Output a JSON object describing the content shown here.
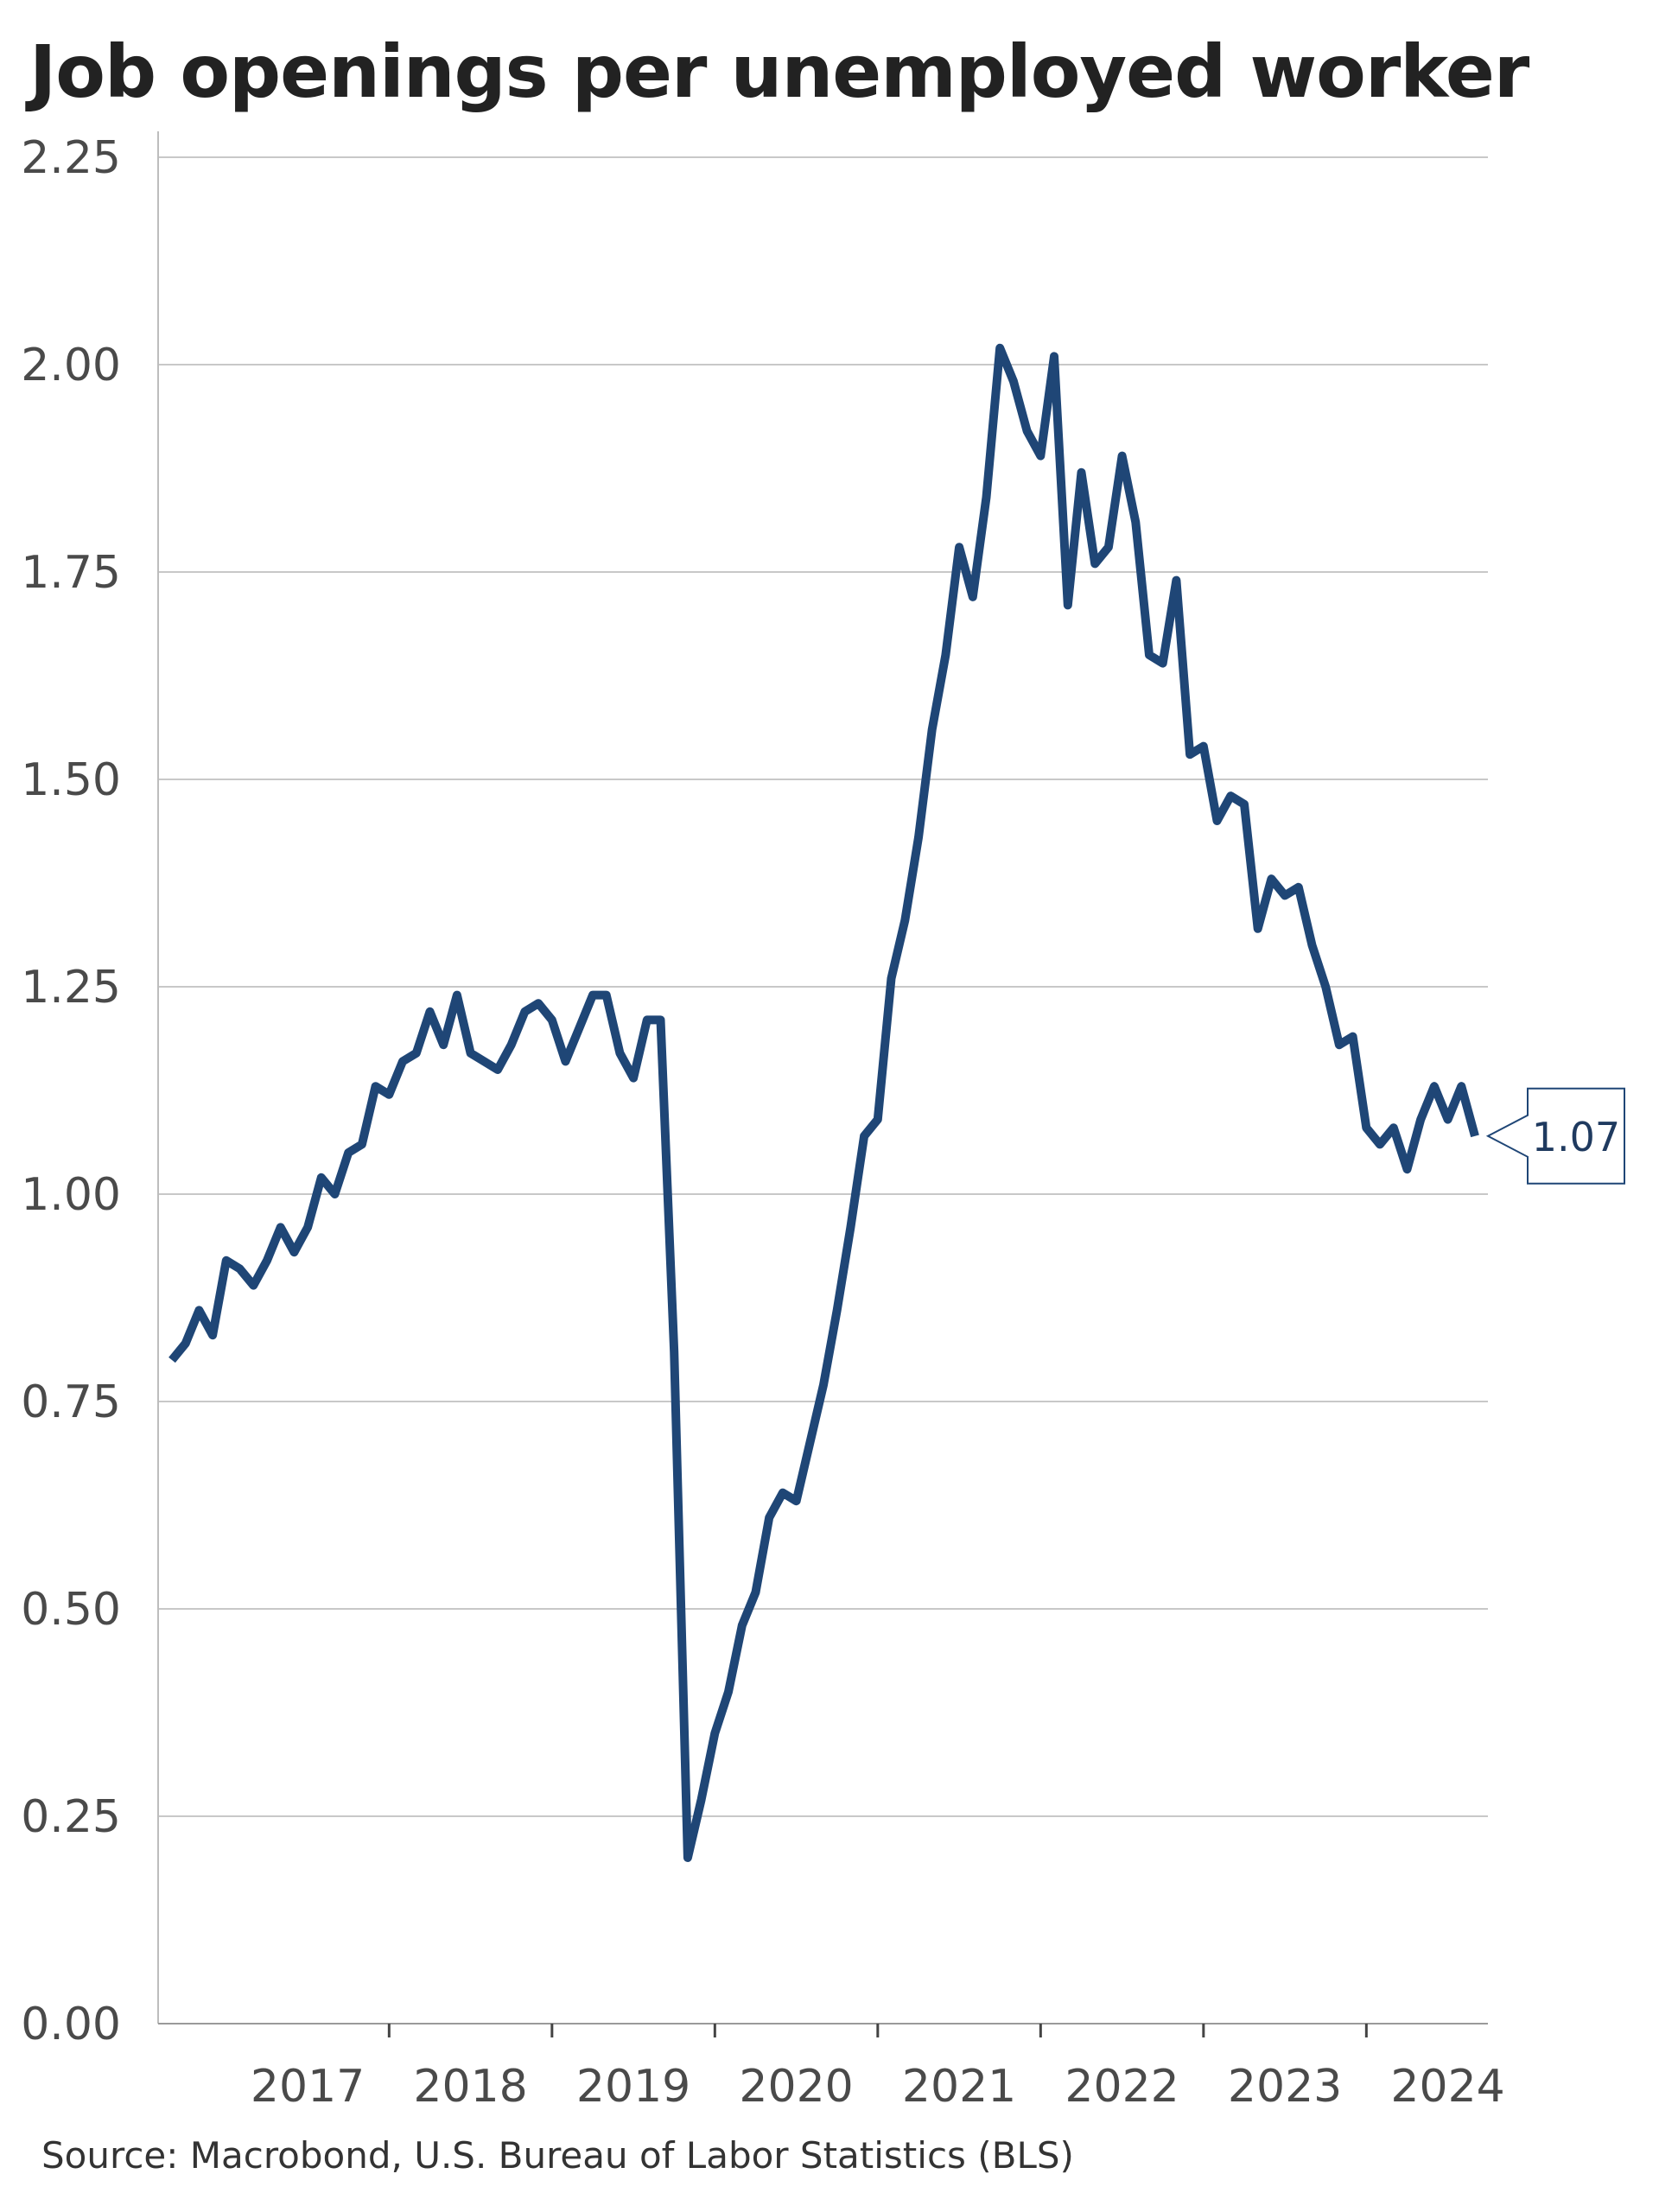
{
  "chart_data": {
    "type": "line",
    "title": "Job openings per unemployed worker",
    "source": "Source: Macrobond, U.S. Bureau of Labor Statistics (BLS)",
    "xlabel": "",
    "ylabel": "",
    "ylim": [
      0,
      2.25
    ],
    "yticks": [
      "0.00",
      "0.25",
      "0.50",
      "0.75",
      "1.00",
      "1.25",
      "1.50",
      "1.75",
      "2.00",
      "2.25"
    ],
    "x_tick_labels": [
      "2017",
      "2018",
      "2019",
      "2020",
      "2021",
      "2022",
      "2023",
      "2024"
    ],
    "grid": "horizontal",
    "line_color": "#1f4676",
    "last_value_label": "1.07",
    "series": [
      {
        "start": "2016-09",
        "frequency": "monthly",
        "values": [
          0.8,
          0.82,
          0.86,
          0.83,
          0.92,
          0.91,
          0.89,
          0.92,
          0.96,
          0.93,
          0.96,
          1.02,
          1.0,
          1.05,
          1.06,
          1.13,
          1.12,
          1.16,
          1.17,
          1.22,
          1.18,
          1.24,
          1.17,
          1.16,
          1.15,
          1.18,
          1.22,
          1.23,
          1.21,
          1.16,
          1.2,
          1.24,
          1.24,
          1.17,
          1.14,
          1.21,
          1.21,
          0.81,
          0.2,
          0.27,
          0.35,
          0.4,
          0.48,
          0.52,
          0.61,
          0.64,
          0.63,
          0.7,
          0.77,
          0.86,
          0.96,
          1.07,
          1.09,
          1.26,
          1.33,
          1.43,
          1.56,
          1.65,
          1.78,
          1.72,
          1.84,
          2.02,
          1.98,
          1.92,
          1.89,
          2.01,
          1.71,
          1.87,
          1.76,
          1.78,
          1.89,
          1.81,
          1.65,
          1.64,
          1.74,
          1.53,
          1.54,
          1.45,
          1.48,
          1.47,
          1.32,
          1.38,
          1.36,
          1.37,
          1.3,
          1.25,
          1.18,
          1.19,
          1.08,
          1.06,
          1.08,
          1.03,
          1.09,
          1.13,
          1.09,
          1.13,
          1.07
        ]
      }
    ]
  }
}
